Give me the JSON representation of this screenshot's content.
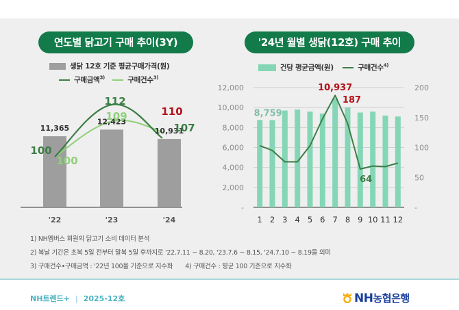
{
  "footnotes": [
    "1) NH멤버스 회원의 닭고기 소비 데이터 분석",
    "2) 복날 기간은 초복 5일 전부터 말복 5일 후까지로 '22.7.11 ~ 8.20, '23.7.6 ~ 8.15, '24.7.10 ~ 8.19을 의미",
    "3) 구매건수•구매금액 : '22년 100을 기준으로 지수화",
    "4) 구매건수 : 평균 100 기준으로 지수화"
  ],
  "footer": {
    "publication": "NH트렌드+",
    "separator": "|",
    "issue": "2025-12호",
    "logo_text_latin": "NH",
    "logo_text_korean": "농협은행"
  },
  "colors": {
    "pill": "#137a4a",
    "bar_gray": "#9e9e9e",
    "bar_mint": "#85d6b6",
    "line_dark": "#3c7d45",
    "line_light": "#8fd07a",
    "highlight_red": "#b5121b"
  },
  "chart_data": [
    {
      "type": "bar",
      "title": "연도별 닭고기 구매 추이(3Y)",
      "legend": {
        "bar": "생닭 12호 기준 평균구매가격(원)",
        "line1": "구매금액",
        "line1_note": "3)",
        "line2": "구매건수",
        "line2_note": "3)"
      },
      "categories": [
        "'22",
        "'23",
        "'24"
      ],
      "series": [
        {
          "name": "생닭 12호 기준 평균구매가격(원)",
          "kind": "bar",
          "values": [
            11365,
            12423,
            10931
          ],
          "labels": [
            "11,365",
            "12,423",
            "10,931"
          ]
        },
        {
          "name": "구매금액",
          "kind": "line",
          "values": [
            100,
            112,
            107
          ],
          "labels": [
            "100",
            "112",
            "107"
          ]
        },
        {
          "name": "구매건수",
          "kind": "line",
          "values": [
            100,
            109,
            110
          ],
          "labels": [
            "100",
            "109",
            "110"
          ]
        }
      ],
      "ylim": [
        0,
        14000
      ],
      "grid": false
    },
    {
      "type": "bar",
      "title": "'24년 월별 생닭(12호) 구매 추이",
      "legend": {
        "bar": "건당 평균금액(원)",
        "line": "구매건수",
        "line_note": "4)"
      },
      "categories": [
        "1",
        "2",
        "3",
        "4",
        "5",
        "6",
        "7",
        "8",
        "9",
        "10",
        "11",
        "12"
      ],
      "series": [
        {
          "name": "건당 평균금액(원)",
          "kind": "bar",
          "axis": "left",
          "values": [
            8759,
            8750,
            9700,
            9800,
            9600,
            9400,
            10937,
            10000,
            9500,
            9600,
            9200,
            9100
          ]
        },
        {
          "name": "구매건수",
          "kind": "line",
          "axis": "right",
          "values": [
            103,
            95,
            76,
            76,
            103,
            148,
            187,
            140,
            64,
            69,
            68,
            74
          ]
        }
      ],
      "annotations": [
        {
          "text": "8,759",
          "series": 0,
          "index": 0,
          "color": "mint"
        },
        {
          "text": "10,937",
          "series": 0,
          "index": 6,
          "color": "red"
        },
        {
          "text": "187",
          "series": 1,
          "index": 6,
          "color": "red"
        },
        {
          "text": "64",
          "series": 1,
          "index": 8,
          "color": "green"
        }
      ],
      "ylim_left": [
        0,
        12000
      ],
      "yticks_left": [
        "-",
        "2,000",
        "4,000",
        "6,000",
        "8,000",
        "10,000",
        "12,000"
      ],
      "ylim_right": [
        0,
        200
      ],
      "yticks_right": [
        "-",
        "50",
        "100",
        "150",
        "200"
      ],
      "grid": true
    }
  ]
}
